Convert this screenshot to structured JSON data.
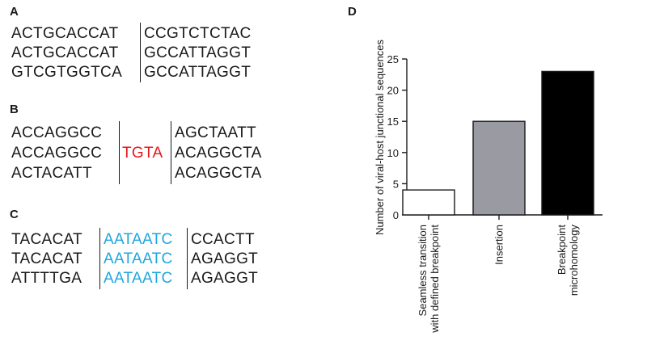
{
  "panels": {
    "A": {
      "label": "A",
      "rows": [
        {
          "left": "ACTGCACCAT",
          "right": "CCGTCTCTAC"
        },
        {
          "left": "ACTGCACCAT",
          "right": "GCCATTAGGT"
        },
        {
          "left": "GTCGTGGTCA",
          "right": "GCCATTAGGT"
        }
      ]
    },
    "B": {
      "label": "B",
      "rows": [
        {
          "left": "ACCAGGCC",
          "mid": "",
          "right": "AGCTAATT"
        },
        {
          "left": "ACCAGGCC",
          "mid": "TGTA",
          "right": "ACAGGCTA"
        },
        {
          "left": "ACTACATT",
          "mid": "",
          "right": "ACAGGCTA"
        }
      ],
      "insert_color": "#e8141b"
    },
    "C": {
      "label": "C",
      "rows": [
        {
          "left": "TACACAT",
          "mid": "AATAATC",
          "right": "CCACTT"
        },
        {
          "left": "TACACAT",
          "mid": "AATAATC",
          "right": "AGAGGT"
        },
        {
          "left": "ATTTTGA",
          "mid": "AATAATC",
          "right": "AGAGGT"
        }
      ],
      "microhomology_color": "#1ea6e0"
    },
    "D": {
      "label": "D"
    }
  },
  "chart_data": {
    "type": "bar",
    "categories": [
      "Seamless transition with defined breakpoint",
      "Insertion",
      "Breakpoint microhomology"
    ],
    "category_lines": [
      [
        "Seamless transition",
        "with defined breakpoint"
      ],
      [
        "Insertion"
      ],
      [
        "Breakpoint",
        "microhomology"
      ]
    ],
    "values": [
      4,
      15,
      23
    ],
    "colors": [
      "#ffffff",
      "#9a9aa2",
      "#000000"
    ],
    "ylabel": "Number of viral-host junctional sequences",
    "xlabel": "",
    "ylim": [
      0,
      25
    ],
    "yticks": [
      0,
      5,
      10,
      15,
      20,
      25
    ],
    "grid": false
  }
}
